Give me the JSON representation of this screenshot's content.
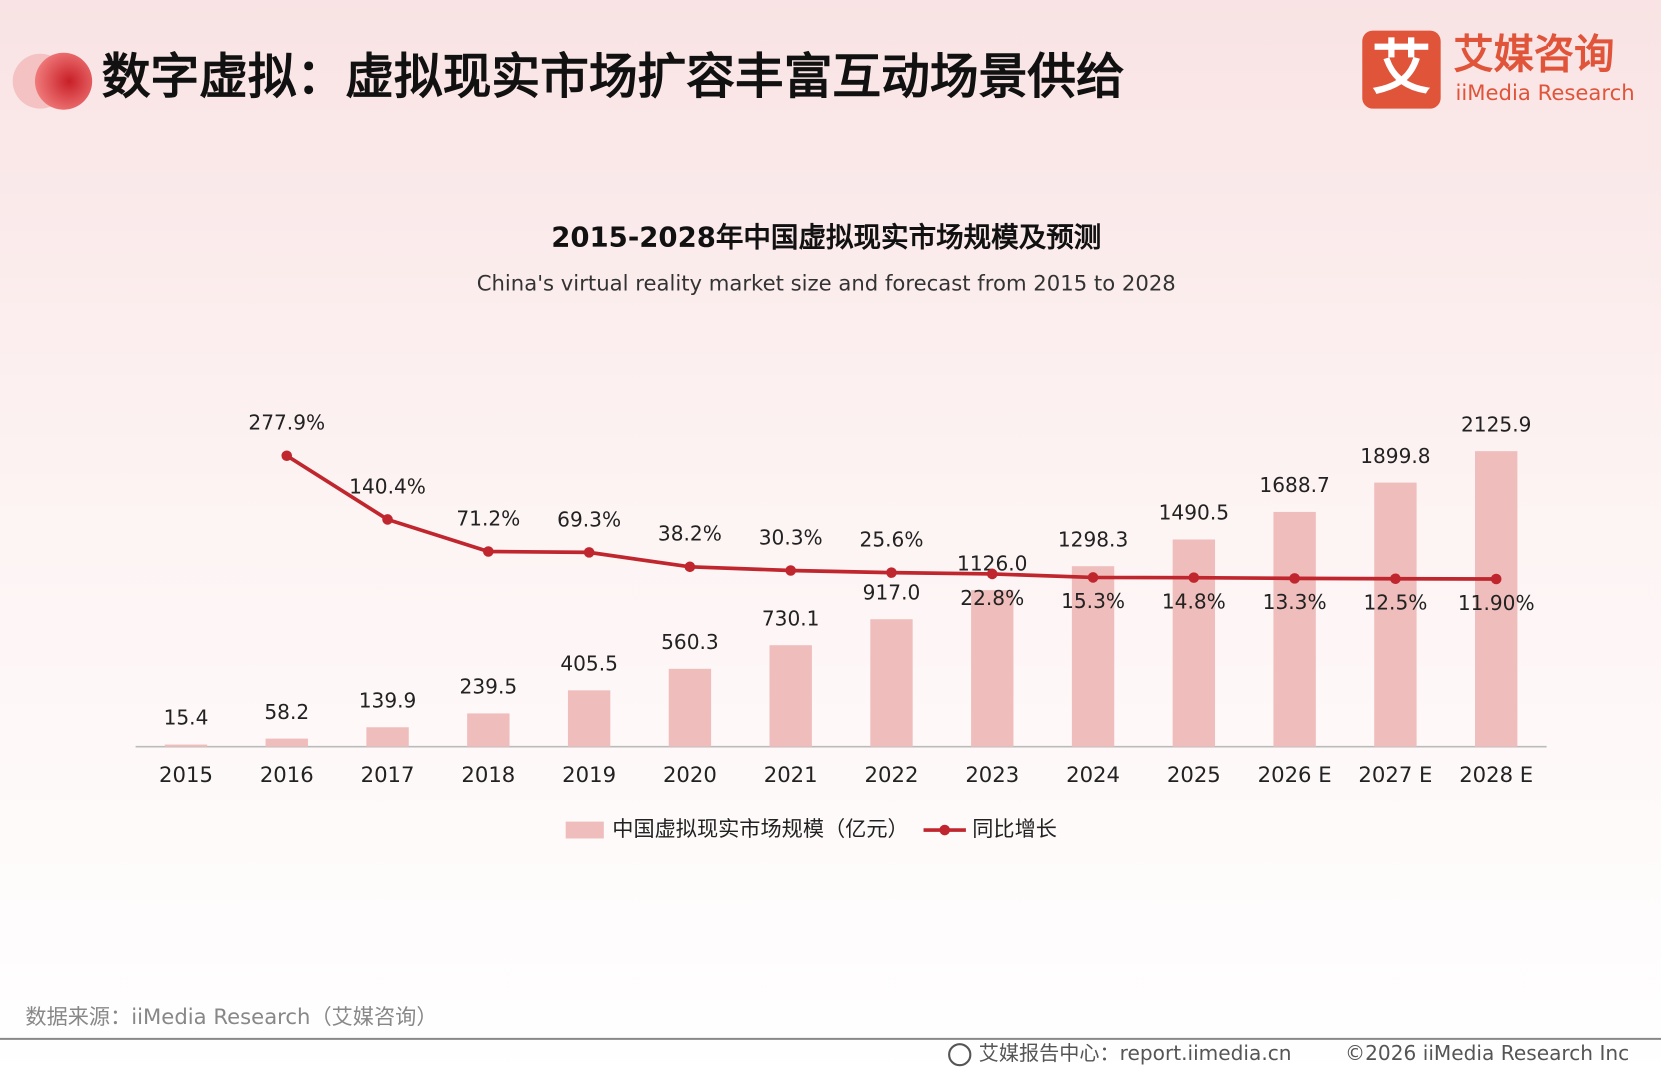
{
  "header": {
    "title": "数字虚拟：虚拟现实市场扩容丰富互动场景供给"
  },
  "logo": {
    "mark": "艾",
    "name": "艾媒咨询",
    "english": "iiMedia Research"
  },
  "source": "数据来源：iiMedia Research（艾媒咨询）",
  "footer": {
    "site": "艾媒报告中心：report.iimedia.cn",
    "copyright": "©2026  iiMedia Research  Inc"
  },
  "chart_data": {
    "type": "combo",
    "title": "2015-2028年中国虚拟现实市场规模及预测",
    "subtitle": "China's virtual reality market size and forecast from 2015 to 2028",
    "categories": [
      "2015",
      "2016",
      "2017",
      "2018",
      "2019",
      "2020",
      "2021",
      "2022",
      "2023",
      "2024",
      "2025",
      "2026 E",
      "2027 E",
      "2028 E"
    ],
    "ylim": [
      0,
      2200
    ],
    "y2lim": [
      -350,
      310
    ],
    "series": [
      {
        "name": "中国虚拟现实市场规模（亿元）",
        "type": "bar",
        "color": "#efbdbb",
        "values": [
          15.4,
          58.2,
          139.9,
          239.5,
          405.5,
          560.3,
          730.1,
          917.0,
          1126.0,
          1298.3,
          1490.5,
          1688.7,
          1899.8,
          2125.9
        ],
        "value_labels": [
          "15.4",
          "58.2",
          "139.9",
          "239.5",
          "405.5",
          "560.3",
          "730.1",
          "917.0",
          "1126.0",
          "1298.3",
          "1490.5",
          "1688.7",
          "1899.8",
          "2125.9"
        ]
      },
      {
        "name": "同比增长",
        "type": "line",
        "axis": "y2",
        "color": "#c0262d",
        "values": [
          null,
          277.9,
          140.4,
          71.2,
          69.3,
          38.2,
          30.3,
          25.6,
          22.8,
          15.3,
          14.8,
          13.3,
          12.5,
          11.9
        ],
        "value_labels": [
          null,
          "277.9%",
          "140.4%",
          "71.2%",
          "69.3%",
          "38.2%",
          "30.3%",
          "25.6%",
          "22.8%",
          "15.3%",
          "14.8%",
          "13.3%",
          "12.5%",
          "11.90%"
        ]
      }
    ]
  }
}
